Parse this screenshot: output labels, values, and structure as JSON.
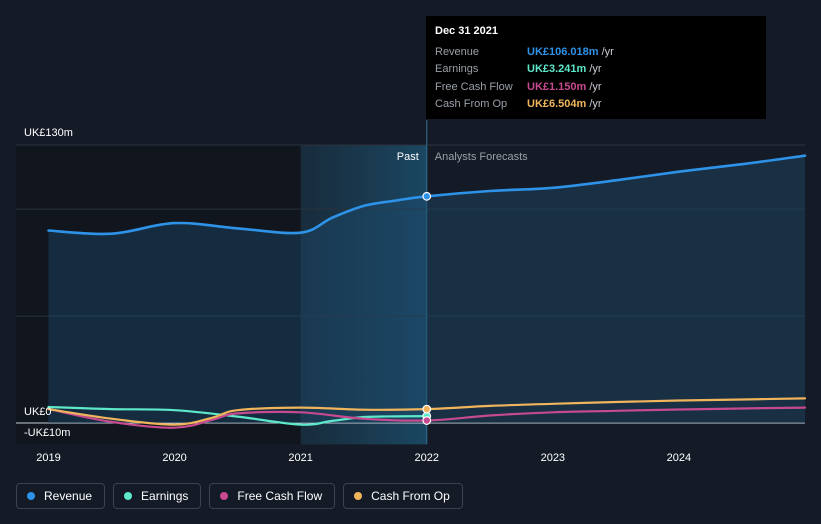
{
  "chart_data": {
    "type": "line",
    "x_ticks": [
      "2019",
      "2020",
      "2021",
      "2022",
      "2023",
      "2024"
    ],
    "y_labels": {
      "top": "UK£130m",
      "zero": "UK£0",
      "bottom": "-UK£10m"
    },
    "ylim": [
      -10,
      130
    ],
    "zones": {
      "past": "Past",
      "forecast": "Analysts Forecasts"
    },
    "series": [
      {
        "name": "Revenue",
        "key": "revenue",
        "color": "#2e93e8",
        "points": [
          [
            2019.0,
            90
          ],
          [
            2019.5,
            88.5
          ],
          [
            2020.0,
            93.5
          ],
          [
            2020.5,
            91
          ],
          [
            2021.0,
            89
          ],
          [
            2021.25,
            96
          ],
          [
            2021.5,
            101.5
          ],
          [
            2021.75,
            104
          ],
          [
            2022.0,
            106.0
          ],
          [
            2022.5,
            108.5
          ],
          [
            2023.0,
            110
          ],
          [
            2023.5,
            113.5
          ],
          [
            2024.0,
            117.5
          ],
          [
            2024.5,
            121
          ],
          [
            2025.0,
            125
          ]
        ]
      },
      {
        "name": "Earnings",
        "key": "earnings",
        "color": "#5de8c9",
        "points": [
          [
            2019.0,
            7.5
          ],
          [
            2019.5,
            6.5
          ],
          [
            2020.0,
            6.0
          ],
          [
            2020.5,
            3
          ],
          [
            2021.0,
            -0.8
          ],
          [
            2021.25,
            1
          ],
          [
            2021.5,
            2.8
          ],
          [
            2021.75,
            3.1
          ],
          [
            2022.0,
            3.241
          ]
        ]
      },
      {
        "name": "Free Cash Flow",
        "key": "free_cash_flow",
        "color": "#c64a8f",
        "points": [
          [
            2019.0,
            6.5
          ],
          [
            2019.5,
            0.5
          ],
          [
            2020.0,
            -2.2
          ],
          [
            2020.3,
            1.5
          ],
          [
            2020.5,
            4.5
          ],
          [
            2021.0,
            5.0
          ],
          [
            2021.5,
            2.0
          ],
          [
            2022.0,
            1.15
          ],
          [
            2022.5,
            3.5
          ],
          [
            2023.0,
            5.0
          ],
          [
            2023.5,
            5.7
          ],
          [
            2024.0,
            6.3
          ],
          [
            2024.5,
            6.8
          ],
          [
            2025.0,
            7.2
          ]
        ]
      },
      {
        "name": "Cash From Op",
        "key": "cash_from_op",
        "color": "#f0b55c",
        "points": [
          [
            2019.0,
            6.5
          ],
          [
            2019.5,
            2.0
          ],
          [
            2020.0,
            -0.8
          ],
          [
            2020.3,
            2.5
          ],
          [
            2020.5,
            6.0
          ],
          [
            2021.0,
            7.2
          ],
          [
            2021.5,
            6.2
          ],
          [
            2022.0,
            6.504
          ],
          [
            2022.5,
            8.0
          ],
          [
            2023.0,
            9.0
          ],
          [
            2023.5,
            9.8
          ],
          [
            2024.0,
            10.5
          ],
          [
            2024.5,
            11.0
          ],
          [
            2025.0,
            11.5
          ]
        ]
      }
    ],
    "tooltip": {
      "date": "Dec 31 2021",
      "rows": [
        {
          "label": "Revenue",
          "value": "UK£106.018m",
          "unit": "/yr",
          "color": "#2e93e8"
        },
        {
          "label": "Earnings",
          "value": "UK£3.241m",
          "unit": "/yr",
          "color": "#5de8c9"
        },
        {
          "label": "Free Cash Flow",
          "value": "UK£1.150m",
          "unit": "/yr",
          "color": "#c64a8f"
        },
        {
          "label": "Cash From Op",
          "value": "UK£6.504m",
          "unit": "/yr",
          "color": "#f0b55c"
        }
      ]
    }
  },
  "legend": [
    {
      "label": "Revenue",
      "color": "#2e93e8"
    },
    {
      "label": "Earnings",
      "color": "#5de8c9"
    },
    {
      "label": "Free Cash Flow",
      "color": "#c64a8f"
    },
    {
      "label": "Cash From Op",
      "color": "#f0b55c"
    }
  ]
}
